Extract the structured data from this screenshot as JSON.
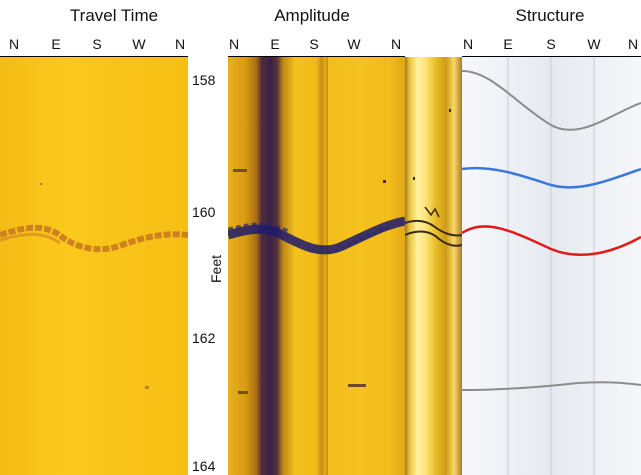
{
  "titles": {
    "travel_time": "Travel Time",
    "amplitude": "Amplitude",
    "structure": "Structure"
  },
  "compass": {
    "travel_time": [
      "N",
      "E",
      "S",
      "W",
      "N"
    ],
    "amplitude": [
      "N",
      "E",
      "S",
      "W",
      "N"
    ],
    "structure": [
      "N",
      "E",
      "S",
      "W",
      "N"
    ]
  },
  "depth_axis": {
    "label": "Feet",
    "ticks": [
      "158",
      "160",
      "162",
      "164"
    ]
  },
  "colors": {
    "travel_time_background": "#f8c21a",
    "travel_time_feature": "#c97a20",
    "amplitude_background": "#f1bb1a",
    "amplitude_feature": "#1c1a6e",
    "structure_background": "#eef1f5",
    "trace_gray": "#8c8c8c",
    "trace_blue": "#3a78e0",
    "trace_red": "#e21a1a"
  }
}
